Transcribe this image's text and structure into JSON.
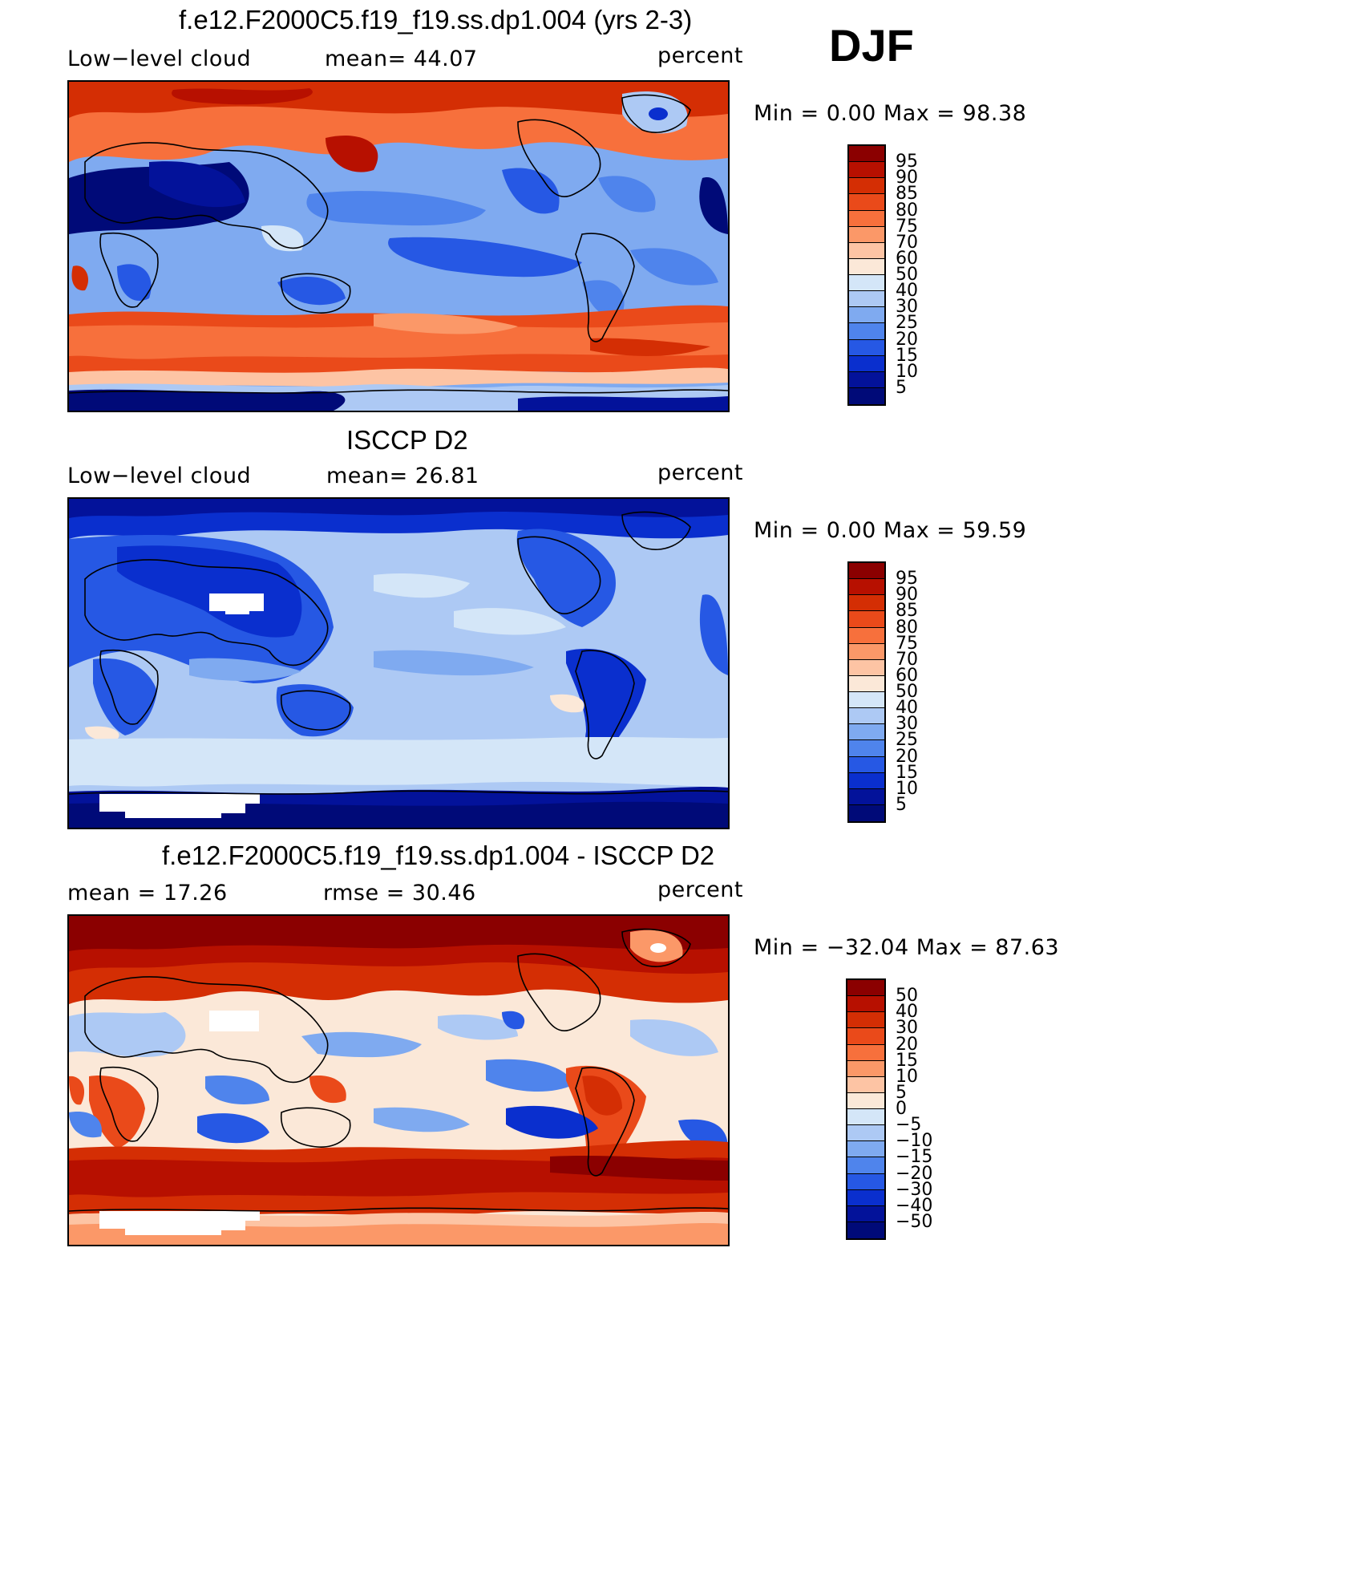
{
  "season": "DJF",
  "chart_data": [
    {
      "type": "heatmap",
      "title": "f.e12.F2000C5.f19_f19.ss.dp1.004 (yrs 2-3)",
      "left_label": "Low−level cloud",
      "center_label": "mean=   44.07",
      "right_label": "percent",
      "stats": "Min  =     0.00  Max  =    98.38",
      "mean": 44.07,
      "min": 0.0,
      "max": 98.38,
      "units": "percent",
      "colorbar_levels": [
        "95",
        "90",
        "85",
        "80",
        "75",
        "70",
        "60",
        "50",
        "40",
        "30",
        "25",
        "20",
        "15",
        "10",
        "5"
      ]
    },
    {
      "type": "heatmap",
      "title": "ISCCP D2",
      "left_label": "Low−level cloud",
      "center_label": "mean=   26.81",
      "right_label": "percent",
      "stats": "Min  =     0.00  Max  =    59.59",
      "mean": 26.81,
      "min": 0.0,
      "max": 59.59,
      "units": "percent",
      "colorbar_levels": [
        "95",
        "90",
        "85",
        "80",
        "75",
        "70",
        "60",
        "50",
        "40",
        "30",
        "25",
        "20",
        "15",
        "10",
        "5"
      ]
    },
    {
      "type": "heatmap",
      "title": "f.e12.F2000C5.f19_f19.ss.dp1.004 - ISCCP D2",
      "left_label": "mean  =    17.26",
      "center_label": "rmse  =    30.46",
      "right_label": "percent",
      "stats": "Min  =  −32.04  Max  =    87.63",
      "mean": 17.26,
      "rmse": 30.46,
      "min": -32.04,
      "max": 87.63,
      "units": "percent",
      "colorbar_levels": [
        "50",
        "40",
        "30",
        "20",
        "15",
        "10",
        "5",
        "0",
        "−5",
        "−10",
        "−15",
        "−20",
        "−30",
        "−40",
        "−50"
      ]
    }
  ],
  "colors": {
    "scale_top_to_bottom": [
      "#8b0000",
      "#b71000",
      "#d42e04",
      "#ea4a1a",
      "#f7703c",
      "#fb9868",
      "#fdc4a4",
      "#fbe8d8",
      "#d4e6f8",
      "#adc9f4",
      "#7faaf0",
      "#4f84ec",
      "#2658e4",
      "#0a2fce",
      "#03129a",
      "#000a78"
    ]
  }
}
